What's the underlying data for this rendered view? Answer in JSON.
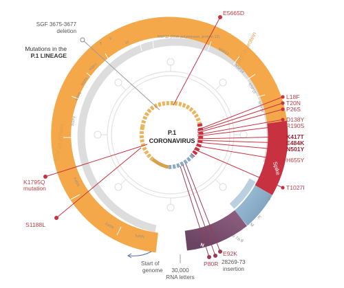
{
  "center": {
    "line1": "P.1",
    "line2": "CORONAVIRUS"
  },
  "lineage": {
    "line1": "Mutations in the",
    "prefix": "P.1",
    "suffix": " LINEAGE"
  },
  "deletion": {
    "line1": "SGF 3675-3677",
    "line2": "deletion"
  },
  "genome_start": {
    "line1": "Start of",
    "line2": "genome"
  },
  "rna": {
    "line1": "30,000",
    "line2": "RNA letters"
  },
  "proteins": {
    "orf1b": "ORF1b protein",
    "orf1a": "ORF1a protein",
    "spike": "Spike",
    "nsp12": "NSP12 (RNA-polymerase, protein 12)"
  },
  "segments": {
    "nsp_numbers": [
      "8",
      "9",
      "10"
    ],
    "nsp13": "NSP13",
    "nsp14": "NSP14",
    "nsp15": "NSP15",
    "nsp16": "NSP16",
    "nsp7": "NSP7",
    "nsp6": "NSP6",
    "nsp5": "NSP5",
    "nsp4": "NSP4",
    "nsp3": "NSP3",
    "nsp2": "NSP2",
    "nsp1": "NSP1",
    "orf3a": "3a",
    "e": "E",
    "m": "M",
    "orf678b": "6 7a 8",
    "n": "N"
  },
  "mutations": {
    "e5665d": "E5665D",
    "l18f": "L18F",
    "t20n": "T20N",
    "p26s": "P26S",
    "d138y": "D138Y",
    "r190s": "R190S",
    "k417t": "K417T",
    "e484k": "E484K",
    "n501y": "N501Y",
    "h655y": "H655Y",
    "t1027i": "T1027I",
    "e92k": "E92K",
    "p80r": "P80R",
    "insertion": {
      "line1": "28269-73",
      "line2": "insertion"
    },
    "k1795q": {
      "line1": "K1795Q",
      "line2": "mutation"
    },
    "s1188l": "S1188L"
  },
  "colors": {
    "orange": "#f4a84a",
    "orange_light": "#f7c27a",
    "red": "#c8313f",
    "red_label": "#b8404a",
    "blue": "#86aec9",
    "purple": "#7a4f6e",
    "grey_band": "#dcdcdc"
  }
}
